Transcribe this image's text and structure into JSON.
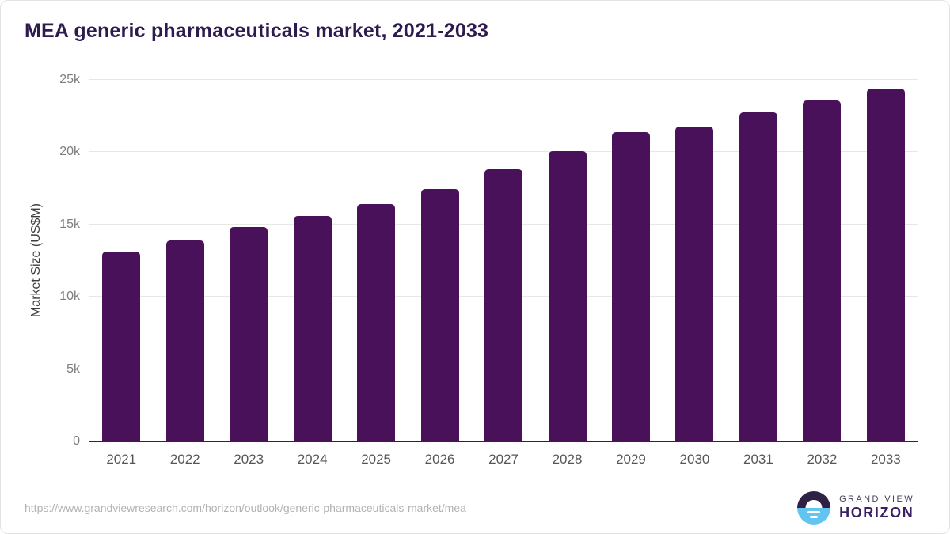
{
  "chart_data": {
    "type": "bar",
    "title": "MEA generic pharmaceuticals market, 2021-2033",
    "categories": [
      "2021",
      "2022",
      "2023",
      "2024",
      "2025",
      "2026",
      "2027",
      "2028",
      "2029",
      "2030",
      "2031",
      "2032",
      "2033"
    ],
    "values": [
      13150,
      13900,
      14800,
      15600,
      16400,
      17450,
      18800,
      20100,
      21400,
      21750,
      22750,
      23600,
      24400
    ],
    "xlabel": "",
    "ylabel": "Market Size (US$M)",
    "ylim": [
      0,
      25000
    ],
    "yticks": [
      0,
      5000,
      10000,
      15000,
      20000,
      25000
    ],
    "ytick_labels": [
      "0",
      "5k",
      "10k",
      "15k",
      "20k",
      "25k"
    ],
    "grid": "horizontal",
    "legend": "none",
    "bar_color": "#481159",
    "title_color": "#2d1a4e"
  },
  "footer": {
    "source_url": "https://www.grandviewresearch.com/horizon/outlook/generic-pharmaceuticals-market/mea",
    "logo": {
      "icon": "horizon-sun-icon",
      "brand_top": "GRAND VIEW",
      "brand_bottom": "HORIZON",
      "icon_top_color": "#2e2144",
      "icon_bottom_color": "#62c5f0"
    }
  }
}
